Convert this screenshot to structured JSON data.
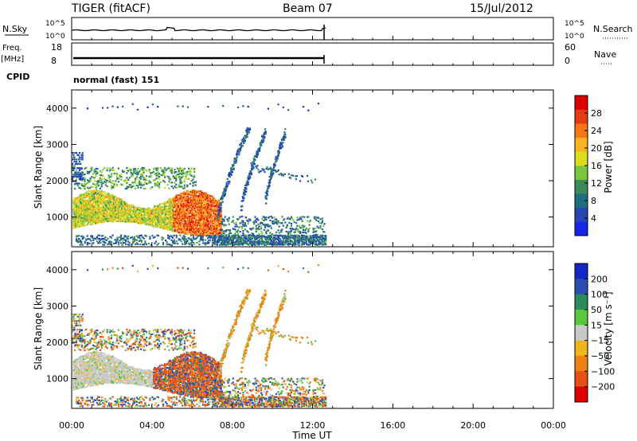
{
  "header": {
    "station": "TIGER (fitACF)",
    "beam": "Beam 07",
    "date": "15/Jul/2012"
  },
  "status_panels": {
    "nsky_label": "N.Sky",
    "nsky_ticks": [
      "10^5",
      "10^0"
    ],
    "nsearch_label": "N.Search",
    "nsearch_ticks": [
      "10^5",
      "10^0"
    ],
    "freq_label": "Freq.",
    "freq_unit": "[MHz]",
    "freq_ticks": [
      "18",
      "8"
    ],
    "nave_label": "Nave",
    "nave_ticks": [
      "60",
      "0"
    ],
    "cpid_label": "CPID",
    "cpid_value": "normal (fast) 151"
  },
  "chart_data": [
    {
      "type": "heatmap",
      "name": "power",
      "ylabel": "Slant Range [km]",
      "xlabel": "Time UT",
      "xlim": [
        "00:00",
        "24:00"
      ],
      "ylim": [
        180,
        4500
      ],
      "x_ticks": [
        "00:00",
        "04:00",
        "08:00",
        "12:00",
        "16:00",
        "20:00",
        "00:00"
      ],
      "y_ticks": [
        1000,
        2000,
        3000,
        4000
      ],
      "data_end_time": "12:40",
      "colorbar": {
        "label": "Power [dB]",
        "ticks": [
          4,
          8,
          12,
          16,
          20,
          24,
          28
        ],
        "range": [
          0,
          32
        ],
        "colors": [
          "#1428e6",
          "#2646b4",
          "#1e6e82",
          "#3c8c5a",
          "#78c83c",
          "#dcdc1e",
          "#fab41e",
          "#f57814",
          "#e63c14",
          "#dc0000"
        ]
      }
    },
    {
      "type": "heatmap",
      "name": "velocity",
      "ylabel": "Slant Range [km]",
      "xlabel": "Time UT",
      "xlim": [
        "00:00",
        "24:00"
      ],
      "ylim": [
        180,
        4500
      ],
      "x_ticks": [
        "00:00",
        "04:00",
        "08:00",
        "12:00",
        "16:00",
        "20:00",
        "00:00"
      ],
      "y_ticks": [
        1000,
        2000,
        3000,
        4000
      ],
      "data_end_time": "12:40",
      "colorbar": {
        "label": "Velocity [m s⁻¹]",
        "ticks": [
          200,
          100,
          50,
          15,
          -15,
          -50,
          -100,
          -200
        ],
        "colors": [
          "#1428c8",
          "#2850b4",
          "#2a8c5a",
          "#5ac83c",
          "#c8c8c8",
          "#f0b41e",
          "#f08214",
          "#e65014",
          "#dc0000"
        ]
      }
    }
  ]
}
